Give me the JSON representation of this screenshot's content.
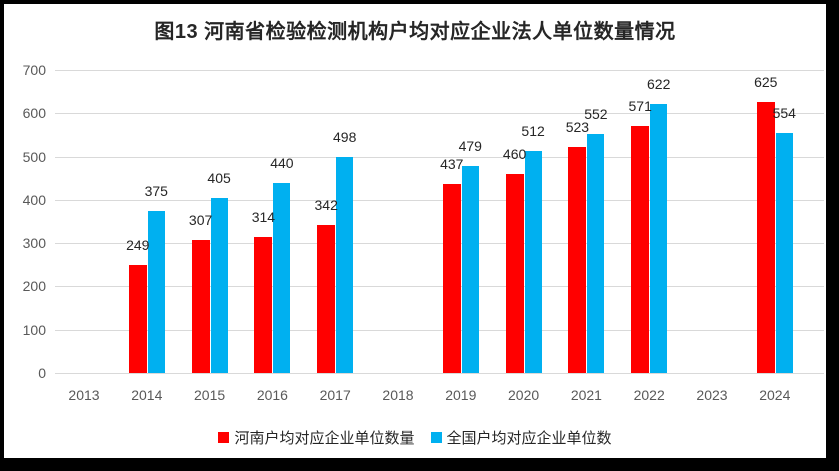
{
  "page": {
    "background": "#FFFFFF",
    "frame_color": "#000000"
  },
  "chart_data": {
    "type": "bar",
    "title": "图13  河南省检验检测机构户均对应企业法人单位数量情况",
    "categories": [
      "2013",
      "2014",
      "2015",
      "2016",
      "2017",
      "2018",
      "2019",
      "2020",
      "2021",
      "2022",
      "2023",
      "2024"
    ],
    "series": [
      {
        "name": "河南户均对应企业单位数量",
        "color": "#FF0000",
        "values": [
          null,
          249,
          307,
          314,
          342,
          null,
          437,
          460,
          523,
          571,
          null,
          625
        ]
      },
      {
        "name": "全国户均对应企业单位数",
        "color": "#00B0F0",
        "values": [
          null,
          375,
          405,
          440,
          498,
          null,
          479,
          512,
          552,
          622,
          null,
          554
        ]
      }
    ],
    "ylim": [
      0,
      700
    ],
    "yticks": [
      0,
      100,
      200,
      300,
      400,
      500,
      600,
      700
    ],
    "grid": true,
    "gridline_color": "#D9D9D9",
    "axis_label_color": "#595959",
    "data_label_color": "#262626",
    "legend_position": "bottom",
    "data_labels": true
  }
}
